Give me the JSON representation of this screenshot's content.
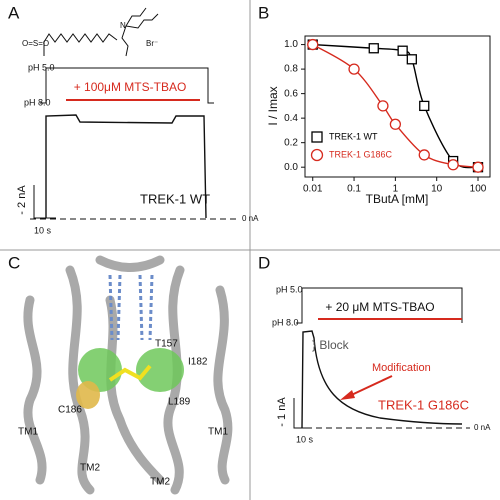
{
  "panels": {
    "a": {
      "label": "A",
      "sulfonyl": "O=S=O",
      "nitrogen": "N",
      "counterion": "Br⁻",
      "ph_high": "pH 5.0",
      "ph_low": "pH 8.0",
      "treatment": "+ 100μM MTS-TBAO",
      "scale_current": "- 2 nA",
      "scale_time": "10 s",
      "construct": "TREK-1 WT",
      "zero": "0 nA"
    },
    "c": {
      "label": "C",
      "residues": [
        "T157",
        "I182",
        "C186",
        "L189"
      ],
      "helices": [
        "TM1",
        "TM1",
        "TM2",
        "TM2"
      ]
    },
    "d": {
      "label": "D",
      "ph_high": "pH 5.0",
      "ph_low": "pH 8.0",
      "treatment": "+ 20 μM MTS-TBAO",
      "block": "} Block",
      "modification": "Modification",
      "scale_current": "- 1 nA",
      "scale_time": "10 s",
      "construct": "TREK-1 G186C",
      "zero": "0 nA"
    }
  },
  "chart_data": {
    "type": "line",
    "panel_label": "B",
    "x_label": "TButA [mM]",
    "y_label": "I / Imax",
    "x_scale": "log",
    "xlim": [
      0.0065,
      195
    ],
    "xticks": [
      0.01,
      0.1,
      1,
      10,
      100
    ],
    "ylim": [
      -0.08,
      1.07
    ],
    "yticks": [
      {
        "value": 0,
        "label": "0.0"
      },
      0.2,
      0.4,
      0.6,
      0.8,
      {
        "value": 1,
        "label": "1.0"
      }
    ],
    "legend": "lower left",
    "series": [
      {
        "name": "TREK-1 WT",
        "color": "#000000",
        "marker": "square",
        "x": [
          0.01,
          0.3,
          1.5,
          2.5,
          5,
          25,
          100
        ],
        "values": [
          1.0,
          0.97,
          0.95,
          0.88,
          0.5,
          0.05,
          0.0
        ]
      },
      {
        "name": "TREK-1 G186C",
        "color": "#d62a1e",
        "marker": "circle",
        "x": [
          0.01,
          0.1,
          0.5,
          1,
          5,
          25,
          100
        ],
        "values": [
          1.0,
          0.8,
          0.5,
          0.35,
          0.1,
          0.02,
          0.0
        ]
      }
    ]
  }
}
